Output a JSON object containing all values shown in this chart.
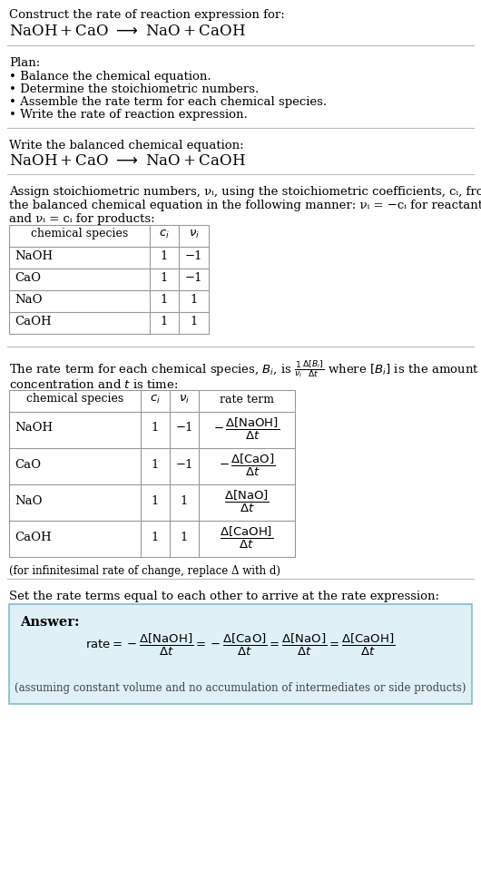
{
  "title_line1": "Construct the rate of reaction expression for:",
  "plan_header": "Plan:",
  "plan_items": [
    "• Balance the chemical equation.",
    "• Determine the stoichiometric numbers.",
    "• Assemble the rate term for each chemical species.",
    "• Write the rate of reaction expression."
  ],
  "section2_header": "Write the balanced chemical equation:",
  "section3_line1": "Assign stoichiometric numbers, νᵢ, using the stoichiometric coefficients, cᵢ, from",
  "section3_line2": "the balanced chemical equation in the following manner: νᵢ = −cᵢ for reactants",
  "section3_line3": "and νᵢ = cᵢ for products:",
  "table1_headers": [
    "chemical species",
    "c_i",
    "ν_i"
  ],
  "table1_rows": [
    [
      "NaOH",
      "1",
      "−1"
    ],
    [
      "CaO",
      "1",
      "−1"
    ],
    [
      "NaO",
      "1",
      "1"
    ],
    [
      "CaOH",
      "1",
      "1"
    ]
  ],
  "section4_line1": "The rate term for each chemical species, Bᵢ, is",
  "section4_line2": "concentration and t is time:",
  "table2_headers": [
    "chemical species",
    "c_i",
    "ν_i",
    "rate term"
  ],
  "table2_rows": [
    [
      "NaOH",
      "1",
      "−1",
      "neg_NaOH"
    ],
    [
      "CaO",
      "1",
      "−1",
      "neg_CaO"
    ],
    [
      "NaO",
      "1",
      "1",
      "pos_NaO"
    ],
    [
      "CaOH",
      "1",
      "1",
      "pos_CaOH"
    ]
  ],
  "infinitesimal_note": "(for infinitesimal rate of change, replace Δ with d)",
  "section5_header": "Set the rate terms equal to each other to arrive at the rate expression:",
  "answer_box_color": "#dff0f7",
  "answer_label": "Answer:",
  "answer_note": "(assuming constant volume and no accumulation of intermediates or side products)",
  "bg_color": "#ffffff",
  "text_color": "#000000",
  "separator_color": "#cccccc",
  "table_border_color": "#999999"
}
